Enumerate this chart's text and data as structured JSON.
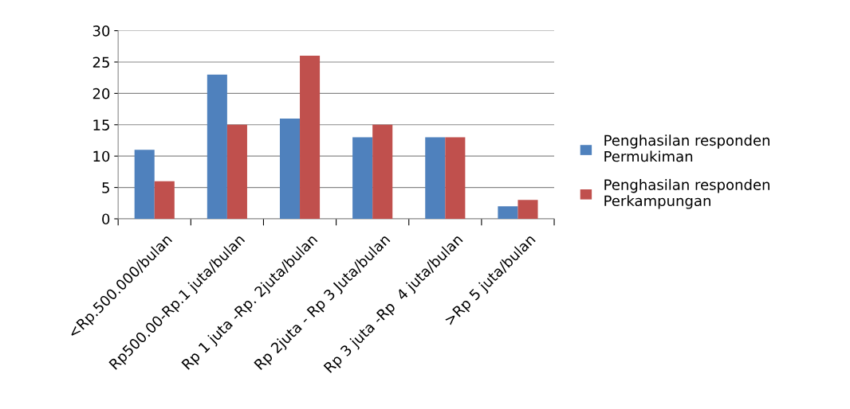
{
  "chart_data": {
    "type": "bar",
    "categories": [
      "<Rp.500.000/bulan",
      "Rp500.00-Rp.1 juta/bulan",
      "Rp 1 juta -Rp. 2juta/bulan",
      "Rp 2juta - Rp 3 Juta/bulan",
      "Rp 3 juta -Rp  4 juta/bulan",
      ">Rp 5 juta/bulan"
    ],
    "series": [
      {
        "name": "Penghasilan responden Permukiman",
        "color": "#4f81bd",
        "values": [
          11,
          23,
          16,
          13,
          13,
          2
        ]
      },
      {
        "name": "Penghasilan responden Perkampungan",
        "color": "#c0504d",
        "values": [
          6,
          15,
          26,
          15,
          13,
          3
        ]
      }
    ],
    "ylim": [
      0,
      30
    ],
    "yticks": [
      0,
      5,
      10,
      15,
      20,
      25,
      30
    ],
    "grid": "y",
    "legend": "right"
  }
}
